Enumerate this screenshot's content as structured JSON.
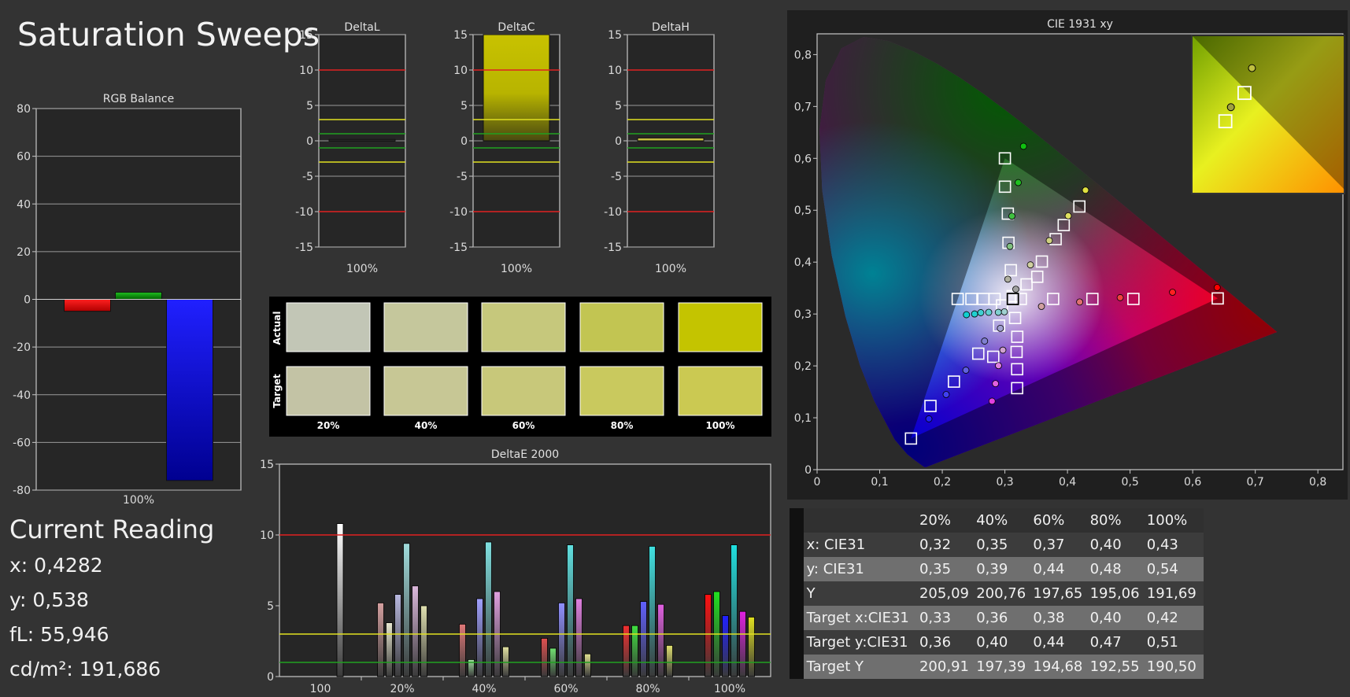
{
  "title": "Saturation Sweeps",
  "current_reading": {
    "heading": "Current Reading",
    "lines": [
      "x: 0,4282",
      "y: 0,538",
      "fL: 55,946",
      "cd/m²: 191,686"
    ]
  },
  "swatches": {
    "row_labels": [
      "Actual",
      "Target"
    ],
    "labels": [
      "20%",
      "40%",
      "60%",
      "80%",
      "100%"
    ],
    "actual_colors": [
      "#c2c6b6",
      "#c5c79c",
      "#c6c87c",
      "#c2c552",
      "#c4c400"
    ],
    "target_colors": [
      "#c3c3a5",
      "#c7c795",
      "#c8c87a",
      "#c9c95e",
      "#cbc952"
    ]
  },
  "table": {
    "columns": [
      "20%",
      "40%",
      "60%",
      "80%",
      "100%"
    ],
    "rows": [
      {
        "label": "x: CIE31",
        "values": [
          "0,32",
          "0,35",
          "0,37",
          "0,40",
          "0,43"
        ]
      },
      {
        "label": "y: CIE31",
        "values": [
          "0,35",
          "0,39",
          "0,44",
          "0,48",
          "0,54"
        ]
      },
      {
        "label": "Y",
        "values": [
          "205,09",
          "200,76",
          "197,65",
          "195,06",
          "191,69"
        ]
      },
      {
        "label": "Target x:CIE31",
        "values": [
          "0,33",
          "0,36",
          "0,38",
          "0,40",
          "0,42"
        ]
      },
      {
        "label": "Target y:CIE31",
        "values": [
          "0,36",
          "0,40",
          "0,44",
          "0,47",
          "0,51"
        ]
      },
      {
        "label": "Target Y",
        "values": [
          "200,91",
          "197,39",
          "194,68",
          "192,55",
          "190,50"
        ]
      }
    ]
  },
  "colors": {
    "background": "#333333",
    "plot_bg": "#262626",
    "red_limit": "#e02020",
    "yellow_limit": "#e0e020",
    "green_limit": "#20a020"
  },
  "chart_data": [
    {
      "type": "bar",
      "title": "RGB Balance",
      "categories": [
        "100%"
      ],
      "series": [
        {
          "values": [
            -5
          ],
          "color": "#ff0000"
        },
        {
          "values": [
            3
          ],
          "color": "#00a000"
        },
        {
          "values": [
            -76
          ],
          "color": "#0000ff"
        }
      ],
      "ylim": [
        -80,
        80
      ],
      "yticks": [
        "80",
        "60",
        "40",
        "20",
        "0",
        "-20",
        "-40",
        "-60",
        "-80"
      ],
      "grid": true
    },
    {
      "type": "bar",
      "title": "DeltaL",
      "categories": [
        "100%"
      ],
      "values": [
        0.2
      ],
      "ylim": [
        -15,
        15
      ],
      "yticks": [
        "15",
        "10",
        "5",
        "0",
        "-5",
        "-10",
        "-15"
      ],
      "limits": [
        10,
        3,
        1,
        -1,
        -3,
        -10
      ]
    },
    {
      "type": "bar",
      "title": "DeltaC",
      "categories": [
        "100%"
      ],
      "values": [
        15
      ],
      "ylim": [
        -15,
        15
      ],
      "yticks": [
        "15",
        "10",
        "5",
        "0",
        "-5",
        "-10",
        "-15"
      ],
      "limits": [
        10,
        3,
        1,
        -1,
        -3,
        -10
      ]
    },
    {
      "type": "bar",
      "title": "DeltaH",
      "categories": [
        "100%"
      ],
      "values": [
        0.4
      ],
      "ylim": [
        -15,
        15
      ],
      "yticks": [
        "15",
        "10",
        "5",
        "0",
        "-5",
        "-10",
        "-15"
      ],
      "limits": [
        10,
        3,
        1,
        -1,
        -3,
        -10
      ]
    },
    {
      "type": "bar",
      "title": "DeltaE 2000",
      "categories": [
        "100",
        "20%",
        "40%",
        "60%",
        "80%",
        "100%"
      ],
      "ylim": [
        0,
        15
      ],
      "yticks": [
        "15",
        "10",
        "5",
        "0"
      ],
      "limits": [
        10,
        3,
        1
      ],
      "groups": [
        {
          "values": [
            10.8
          ],
          "colors": [
            "#ffffff"
          ]
        },
        {
          "values": [
            5.2,
            3.8,
            5.8,
            9.4,
            6.4,
            5.0
          ],
          "colors": [
            "#d4a0a0",
            "#e8e8d0",
            "#b8b8e0",
            "#a0dcdc",
            "#dcb8dc",
            "#e0e0b0"
          ]
        },
        {
          "values": [
            3.7,
            1.2,
            5.5,
            9.5,
            6.0,
            2.1
          ],
          "colors": [
            "#e07878",
            "#a0e0a0",
            "#a0a0ff",
            "#80e0e0",
            "#e0a0e0",
            "#e0e0a0"
          ]
        },
        {
          "values": [
            2.7,
            2.0,
            5.2,
            9.3,
            5.5,
            1.6
          ],
          "colors": [
            "#e05050",
            "#70e070",
            "#9090ff",
            "#60e0e0",
            "#e080e0",
            "#e0e090"
          ]
        },
        {
          "values": [
            3.6,
            3.6,
            5.3,
            9.2,
            5.1,
            2.2
          ],
          "colors": [
            "#f03030",
            "#40e040",
            "#6060ff",
            "#40e0e0",
            "#e060e0",
            "#e0e070"
          ]
        },
        {
          "values": [
            5.8,
            6.0,
            4.3,
            9.3,
            4.6,
            4.2
          ],
          "colors": [
            "#ff1010",
            "#20e020",
            "#2020ff",
            "#20e0e0",
            "#e020e0",
            "#e0e020"
          ]
        }
      ]
    },
    {
      "type": "scatter",
      "title": "CIE 1931 xy",
      "xlim": [
        0,
        0.84
      ],
      "ylim": [
        0,
        0.84
      ],
      "xticks": [
        "0",
        "0,1",
        "0,2",
        "0,3",
        "0,4",
        "0,5",
        "0,6",
        "0,7",
        "0,8"
      ],
      "yticks": [
        "0",
        "0,1",
        "0,2",
        "0,3",
        "0,4",
        "0,5",
        "0,6",
        "0,7",
        "0,8"
      ],
      "gamut": [
        [
          0.64,
          0.33
        ],
        [
          0.3,
          0.6
        ],
        [
          0.15,
          0.06
        ]
      ],
      "white": [
        0.3127,
        0.329
      ],
      "targets": [
        [
          0.3127,
          0.329
        ],
        [
          0.3125,
          0.3344
        ],
        [
          0.3255,
          0.329
        ],
        [
          0.3771,
          0.329
        ],
        [
          0.4398,
          0.329
        ],
        [
          0.5053,
          0.329
        ],
        [
          0.64,
          0.33
        ],
        [
          0.3095,
          0.3844
        ],
        [
          0.3057,
          0.4373
        ],
        [
          0.3047,
          0.4934
        ],
        [
          0.3001,
          0.5454
        ],
        [
          0.3,
          0.6
        ],
        [
          0.2954,
          0.3166
        ],
        [
          0.2908,
          0.2776
        ],
        [
          0.2814,
          0.2176
        ],
        [
          0.2575,
          0.2236
        ],
        [
          0.2186,
          0.1697
        ],
        [
          0.1811,
          0.1227
        ],
        [
          0.15,
          0.06
        ],
        [
          0.2836,
          0.329
        ],
        [
          0.2656,
          0.329
        ],
        [
          0.2465,
          0.329
        ],
        [
          0.2246,
          0.329
        ],
        [
          0.3163,
          0.2923
        ],
        [
          0.3198,
          0.2561
        ],
        [
          0.3187,
          0.2269
        ],
        [
          0.3196,
          0.1936
        ],
        [
          0.3196,
          0.1571
        ],
        [
          0.3346,
          0.3571
        ],
        [
          0.3517,
          0.3718
        ],
        [
          0.3591,
          0.4011
        ],
        [
          0.3811,
          0.4443
        ],
        [
          0.394,
          0.4714
        ],
        [
          0.419,
          0.5072
        ]
      ],
      "actuals": [
        [
          0.3175,
          0.3478,
          "#a0a0a0"
        ],
        [
          0.3047,
          0.3671,
          "#b0b0a0"
        ],
        [
          0.3081,
          0.4303,
          "#80c080"
        ],
        [
          0.3112,
          0.4886,
          "#40c040"
        ],
        [
          0.3213,
          0.5533,
          "#20c020"
        ],
        [
          0.3297,
          0.6233,
          "#10c010"
        ],
        [
          0.3584,
          0.3146,
          "#d0a0a0"
        ],
        [
          0.4195,
          0.3231,
          "#e07070"
        ],
        [
          0.4842,
          0.3316,
          "#f04040"
        ],
        [
          0.5678,
          0.3419,
          "#ff2020"
        ],
        [
          0.6392,
          0.351,
          "#ff0000"
        ],
        [
          0.2992,
          0.3042,
          "#a0d0d0"
        ],
        [
          0.2895,
          0.3033,
          "#80d0d0"
        ],
        [
          0.2742,
          0.3032,
          "#60d0d0"
        ],
        [
          0.2615,
          0.3026,
          "#40d0d0"
        ],
        [
          0.2516,
          0.3001,
          "#20d0d0"
        ],
        [
          0.2386,
          0.2986,
          "#10d0d0"
        ],
        [
          0.2928,
          0.2724,
          "#a0a0d0"
        ],
        [
          0.2676,
          0.2478,
          "#8080d0"
        ],
        [
          0.2377,
          0.1917,
          "#6060e0"
        ],
        [
          0.2062,
          0.1448,
          "#4040f0"
        ],
        [
          0.1786,
          0.0979,
          "#2020f0"
        ],
        [
          0.2968,
          0.2304,
          "#d0a0d0"
        ],
        [
          0.2898,
          0.2005,
          "#e080e0"
        ],
        [
          0.285,
          0.1658,
          "#e060e0"
        ],
        [
          0.2795,
          0.132,
          "#e040e0"
        ],
        [
          0.3408,
          0.3947,
          "#d0d0a0"
        ],
        [
          0.3709,
          0.4415,
          "#d0d080"
        ],
        [
          0.4012,
          0.4892,
          "#e0e060"
        ],
        [
          0.4288,
          0.5386,
          "#e0e040"
        ]
      ],
      "inset": {
        "xlim": [
          0.35,
          0.55
        ],
        "ylim": [
          0.38,
          0.58
        ],
        "targets": [
          [
            0.419,
            0.5072
          ],
          [
            0.394,
            0.4714
          ]
        ],
        "actuals": [
          [
            0.4288,
            0.5386,
            "#c0c040"
          ],
          [
            0.4012,
            0.4892,
            "#a0a040"
          ]
        ]
      }
    }
  ]
}
